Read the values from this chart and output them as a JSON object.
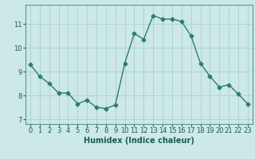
{
  "x": [
    0,
    1,
    2,
    3,
    4,
    5,
    6,
    7,
    8,
    9,
    10,
    11,
    12,
    13,
    14,
    15,
    16,
    17,
    18,
    19,
    20,
    21,
    22,
    23
  ],
  "y": [
    9.3,
    8.8,
    8.5,
    8.1,
    8.1,
    7.65,
    7.8,
    7.5,
    7.45,
    7.6,
    9.35,
    10.6,
    10.35,
    11.35,
    11.2,
    11.2,
    11.1,
    10.5,
    9.35,
    8.8,
    8.35,
    8.45,
    8.05,
    7.65
  ],
  "line_color": "#2d7d6e",
  "marker": "D",
  "marker_size": 2.5,
  "bg_color": "#cce8e8",
  "grid_color": "#aad0d0",
  "xlabel": "Humidex (Indice chaleur)",
  "xlabel_weight": "bold",
  "xlabel_fontsize": 7,
  "tick_fontsize": 6,
  "ylim": [
    6.8,
    11.8
  ],
  "xlim": [
    -0.5,
    23.5
  ],
  "yticks": [
    7,
    8,
    9,
    10,
    11
  ],
  "xticks": [
    0,
    1,
    2,
    3,
    4,
    5,
    6,
    7,
    8,
    9,
    10,
    11,
    12,
    13,
    14,
    15,
    16,
    17,
    18,
    19,
    20,
    21,
    22,
    23
  ],
  "text_color": "#1a5c52",
  "spine_color": "#5a9a8a",
  "linewidth": 1.0
}
